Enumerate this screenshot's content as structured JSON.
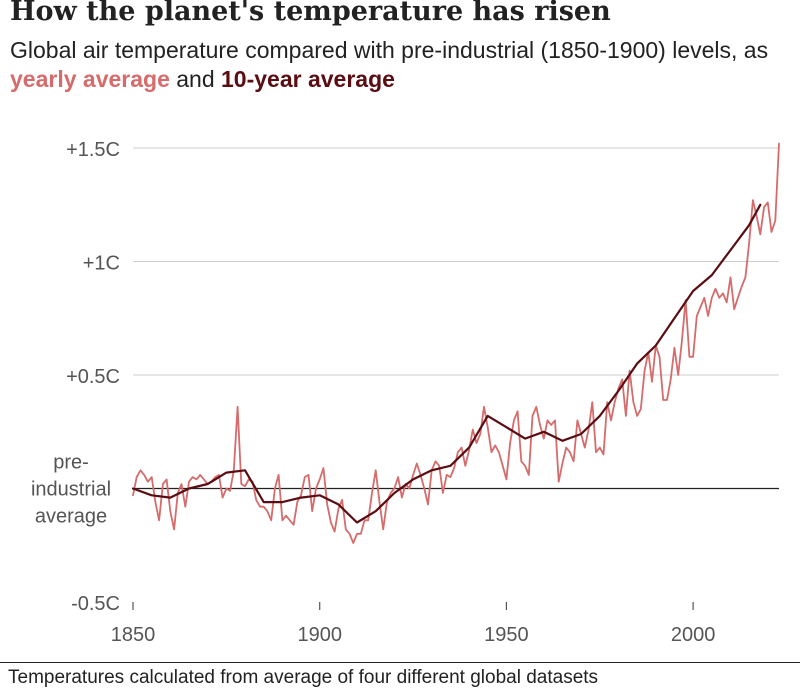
{
  "header": {
    "title": "How the planet's temperature has risen",
    "subtitle_prefix": "Global air temperature compared with pre-industrial (1850-1900) levels, as ",
    "subtitle_yearly": "yearly average",
    "subtitle_and": " and ",
    "subtitle_decade": "10-year average"
  },
  "footnote": "Temperatures calculated from average of four different global datasets",
  "colors": {
    "yearly": "#d66b6b",
    "decade": "#5a0d12",
    "grid": "#cccccc",
    "baseline": "#222222",
    "axis_text": "#555555"
  },
  "chart_data": {
    "type": "line",
    "title": "How the planet's temperature has risen",
    "xlabel": "",
    "ylabel": "",
    "xlim": [
      1850,
      2023
    ],
    "ylim": [
      -0.5,
      1.5
    ],
    "x_ticks": [
      {
        "value": 1850,
        "label": "1850"
      },
      {
        "value": 1900,
        "label": "1900"
      },
      {
        "value": 1950,
        "label": "1950"
      },
      {
        "value": 2000,
        "label": "2000"
      }
    ],
    "y_ticks": [
      {
        "value": 1.5,
        "label": "+1.5C"
      },
      {
        "value": 1.0,
        "label": "+1C"
      },
      {
        "value": 0.5,
        "label": "+0.5C"
      },
      {
        "value": -0.5,
        "label": "-0.5C"
      }
    ],
    "baseline": {
      "value": 0,
      "label_lines": [
        "pre-",
        "industrial",
        "average"
      ]
    },
    "grid": true,
    "series": [
      {
        "name": "yearly average",
        "x": [
          1850,
          1851,
          1852,
          1853,
          1854,
          1855,
          1856,
          1857,
          1858,
          1859,
          1860,
          1861,
          1862,
          1863,
          1864,
          1865,
          1866,
          1867,
          1868,
          1869,
          1870,
          1871,
          1872,
          1873,
          1874,
          1875,
          1876,
          1877,
          1878,
          1879,
          1880,
          1881,
          1882,
          1883,
          1884,
          1885,
          1886,
          1887,
          1888,
          1889,
          1890,
          1891,
          1892,
          1893,
          1894,
          1895,
          1896,
          1897,
          1898,
          1899,
          1900,
          1901,
          1902,
          1903,
          1904,
          1905,
          1906,
          1907,
          1908,
          1909,
          1910,
          1911,
          1912,
          1913,
          1914,
          1915,
          1916,
          1917,
          1918,
          1919,
          1920,
          1921,
          1922,
          1923,
          1924,
          1925,
          1926,
          1927,
          1928,
          1929,
          1930,
          1931,
          1932,
          1933,
          1934,
          1935,
          1936,
          1937,
          1938,
          1939,
          1940,
          1941,
          1942,
          1943,
          1944,
          1945,
          1946,
          1947,
          1948,
          1949,
          1950,
          1951,
          1952,
          1953,
          1954,
          1955,
          1956,
          1957,
          1958,
          1959,
          1960,
          1961,
          1962,
          1963,
          1964,
          1965,
          1966,
          1967,
          1968,
          1969,
          1970,
          1971,
          1972,
          1973,
          1974,
          1975,
          1976,
          1977,
          1978,
          1979,
          1980,
          1981,
          1982,
          1983,
          1984,
          1985,
          1986,
          1987,
          1988,
          1989,
          1990,
          1991,
          1992,
          1993,
          1994,
          1995,
          1996,
          1997,
          1998,
          1999,
          2000,
          2001,
          2002,
          2003,
          2004,
          2005,
          2006,
          2007,
          2008,
          2009,
          2010,
          2011,
          2012,
          2013,
          2014,
          2015,
          2016,
          2017,
          2018,
          2019,
          2020,
          2021,
          2022,
          2023
        ],
        "values": [
          -0.03,
          0.05,
          0.08,
          0.06,
          0.03,
          0.05,
          -0.06,
          -0.14,
          0.02,
          0.04,
          -0.1,
          -0.18,
          -0.02,
          0.02,
          -0.08,
          0.03,
          0.05,
          0.04,
          0.06,
          0.04,
          0.02,
          0.03,
          0.05,
          0.06,
          -0.04,
          0.0,
          -0.01,
          0.08,
          0.36,
          0.02,
          0.01,
          0.04,
          0.03,
          -0.05,
          -0.08,
          -0.08,
          -0.1,
          -0.14,
          0.0,
          0.06,
          -0.14,
          -0.12,
          -0.14,
          -0.16,
          -0.06,
          -0.03,
          0.05,
          0.06,
          -0.1,
          0.0,
          0.04,
          0.09,
          -0.07,
          -0.15,
          -0.19,
          -0.09,
          -0.05,
          -0.18,
          -0.2,
          -0.24,
          -0.2,
          -0.2,
          -0.14,
          -0.14,
          -0.02,
          0.08,
          -0.06,
          -0.18,
          -0.06,
          -0.02,
          0.0,
          0.05,
          -0.04,
          0.02,
          0.0,
          0.06,
          0.11,
          0.06,
          0.0,
          -0.07,
          0.08,
          0.12,
          0.1,
          -0.02,
          0.06,
          0.05,
          0.09,
          0.16,
          0.18,
          0.1,
          0.17,
          0.26,
          0.2,
          0.24,
          0.36,
          0.27,
          0.16,
          0.19,
          0.16,
          0.1,
          0.04,
          0.2,
          0.3,
          0.34,
          0.12,
          0.1,
          0.06,
          0.32,
          0.36,
          0.28,
          0.22,
          0.3,
          0.28,
          0.3,
          0.03,
          0.11,
          0.18,
          0.16,
          0.12,
          0.3,
          0.24,
          0.18,
          0.26,
          0.38,
          0.16,
          0.18,
          0.15,
          0.38,
          0.3,
          0.38,
          0.44,
          0.48,
          0.32,
          0.52,
          0.38,
          0.32,
          0.35,
          0.52,
          0.6,
          0.47,
          0.63,
          0.58,
          0.39,
          0.39,
          0.48,
          0.62,
          0.5,
          0.65,
          0.83,
          0.58,
          0.58,
          0.76,
          0.8,
          0.84,
          0.76,
          0.84,
          0.88,
          0.84,
          0.86,
          0.82,
          0.93,
          0.79,
          0.84,
          0.89,
          0.93,
          1.08,
          1.27,
          1.2,
          1.12,
          1.24,
          1.26,
          1.13,
          1.18,
          1.52
        ]
      },
      {
        "name": "10-year average",
        "x": [
          1850,
          1855,
          1860,
          1865,
          1870,
          1875,
          1880,
          1885,
          1890,
          1895,
          1900,
          1905,
          1910,
          1915,
          1920,
          1925,
          1930,
          1935,
          1940,
          1945,
          1950,
          1955,
          1960,
          1965,
          1970,
          1975,
          1980,
          1985,
          1990,
          1995,
          2000,
          2005,
          2010,
          2015,
          2018
        ],
        "values": [
          0.0,
          -0.03,
          -0.04,
          0.0,
          0.02,
          0.07,
          0.08,
          -0.06,
          -0.06,
          -0.04,
          -0.03,
          -0.07,
          -0.15,
          -0.1,
          -0.02,
          0.04,
          0.08,
          0.1,
          0.18,
          0.32,
          0.27,
          0.22,
          0.25,
          0.21,
          0.24,
          0.32,
          0.43,
          0.55,
          0.63,
          0.75,
          0.87,
          0.94,
          1.05,
          1.16,
          1.25
        ]
      }
    ]
  }
}
